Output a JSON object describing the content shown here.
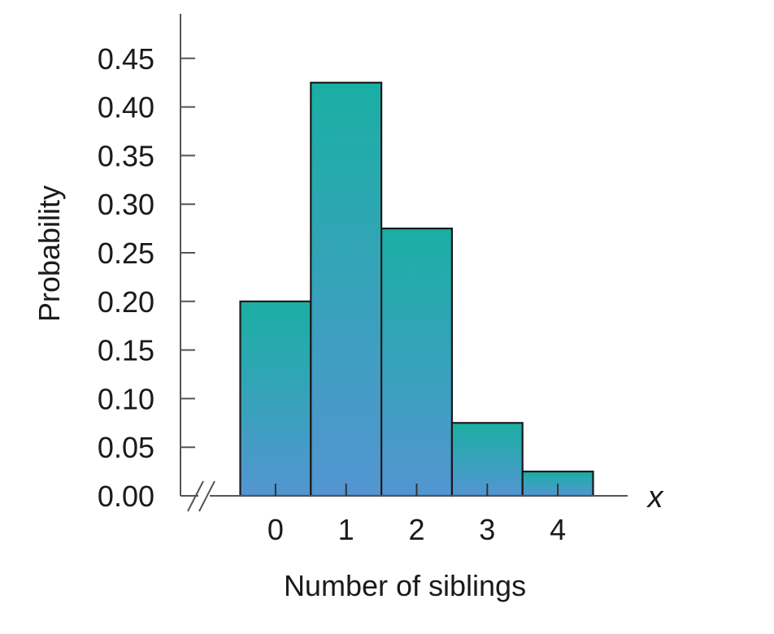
{
  "chart_data": {
    "type": "bar",
    "categories": [
      "0",
      "1",
      "2",
      "3",
      "4"
    ],
    "values": [
      0.2,
      0.425,
      0.275,
      0.075,
      0.025
    ],
    "xlabel": "Number of siblings",
    "ylabel": "Probability",
    "x_variable": "x",
    "ylim": [
      0,
      0.45
    ],
    "yticks": [
      "0.00",
      "0.05",
      "0.10",
      "0.15",
      "0.20",
      "0.25",
      "0.30",
      "0.35",
      "0.40",
      "0.45"
    ],
    "grid": false,
    "legend": "none",
    "axis_break_on_x": true,
    "bar_gradient": {
      "top": "#1aafa4",
      "bottom": "#5395d1"
    },
    "bar_outline": "#1a1a1a"
  }
}
